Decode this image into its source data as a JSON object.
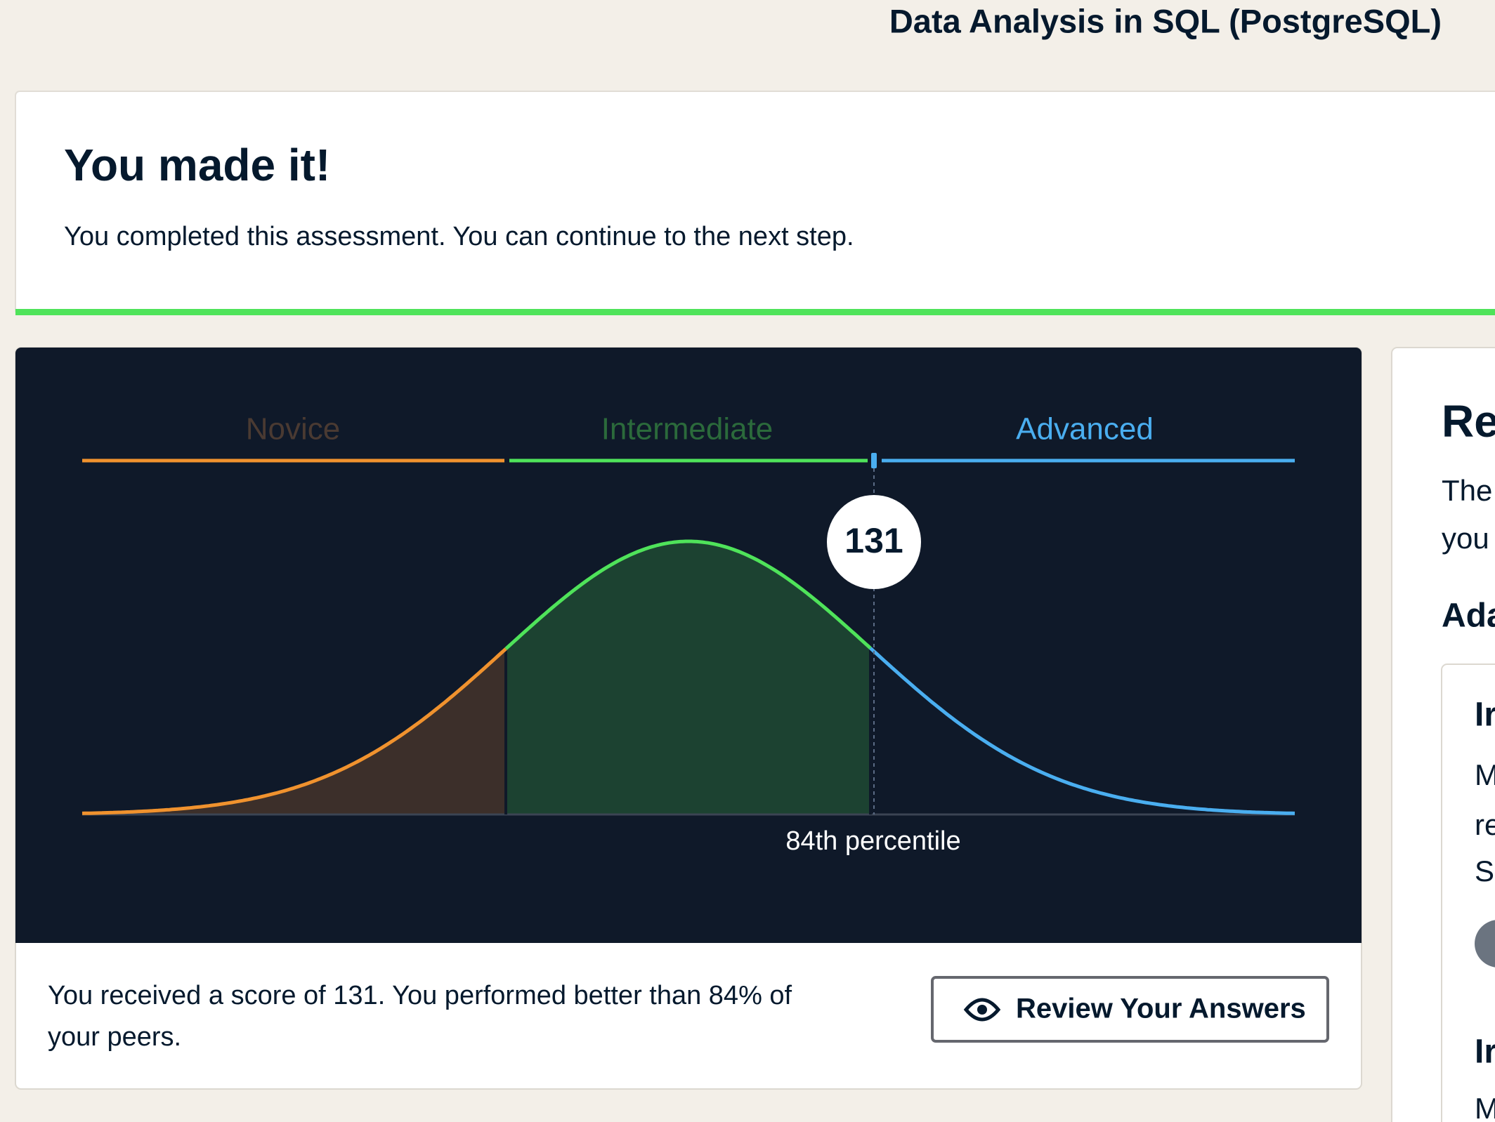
{
  "header": {
    "title": "Data Analysis in SQL (PostgreSQL)"
  },
  "banner": {
    "title": "You made it!",
    "text": "You completed this assessment. You can continue to the next step."
  },
  "score_card": {
    "levels": [
      "Novice",
      "Intermediate",
      "Advanced"
    ],
    "score": 131,
    "percentile_label": "84th percentile",
    "summary_lines": [
      "You received a score of 131. You performed better than 84% of",
      "your peers."
    ],
    "button": "Review Your Answers"
  },
  "side_panel": {
    "title": "Re",
    "text_lines": [
      "The",
      "you"
    ],
    "subtitle": "Ada",
    "cards": [
      {
        "title": "Ir",
        "lines": [
          "M",
          "re",
          "Sc"
        ]
      },
      {
        "title": "Ir",
        "lines": [
          "M"
        ]
      }
    ]
  }
}
